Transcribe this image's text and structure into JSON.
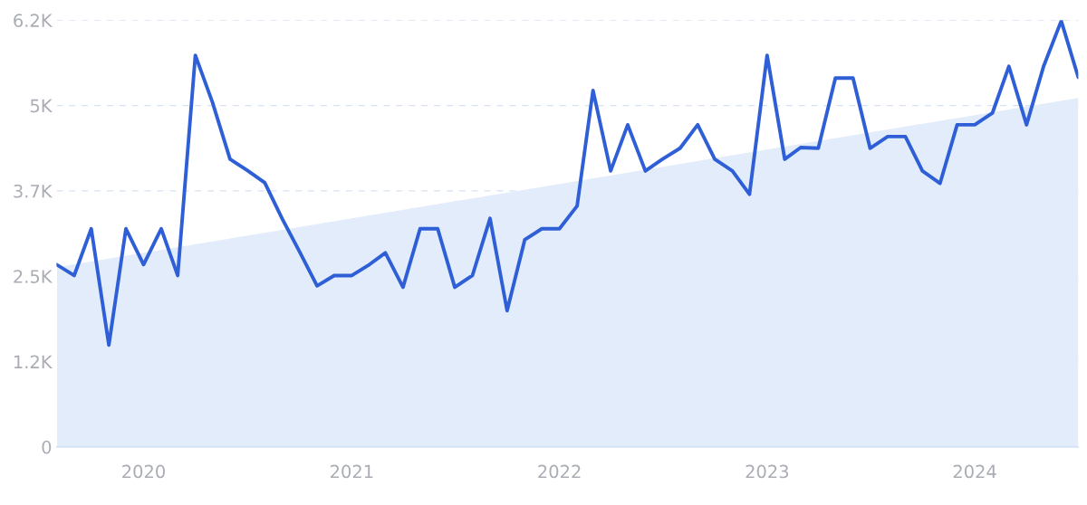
{
  "chart_data": {
    "type": "line",
    "xlim": [
      "2019-08",
      "2024-07"
    ],
    "xticks": [
      {
        "value": "2020-01",
        "label": "2020"
      },
      {
        "value": "2021-01",
        "label": "2021"
      },
      {
        "value": "2022-01",
        "label": "2022"
      },
      {
        "value": "2023-01",
        "label": "2023"
      },
      {
        "value": "2024-01",
        "label": "2024"
      }
    ],
    "ylim": [
      0,
      6200
    ],
    "yticks": [
      0,
      {
        "value": 1240,
        "label": "1.2K"
      },
      {
        "value": 2480,
        "label": "2.5K"
      },
      {
        "value": 3720,
        "label": "3.7K"
      },
      {
        "value": 4960,
        "label": "5K"
      },
      {
        "value": 6200,
        "label": "6.2K"
      }
    ],
    "grid": "y",
    "marker": "none",
    "line_style": "solid",
    "series": [
      {
        "type": "area",
        "color": "#e2ecfb",
        "x": [
          "2019-08",
          "2024-07"
        ],
        "values": [
          2610,
          5070
        ]
      },
      {
        "color": "#2f5fd6",
        "x": [
          "2019-08",
          "2019-09",
          "2019-10",
          "2019-11",
          "2019-12",
          "2020-01",
          "2020-02",
          "2020-03",
          "2020-04",
          "2020-05",
          "2020-06",
          "2020-07",
          "2020-08",
          "2020-09",
          "2020-10",
          "2020-11",
          "2020-12",
          "2021-01",
          "2021-02",
          "2021-03",
          "2021-04",
          "2021-05",
          "2021-06",
          "2021-07",
          "2021-08",
          "2021-09",
          "2021-10",
          "2021-11",
          "2021-12",
          "2022-01",
          "2022-02",
          "2022-03",
          "2022-04",
          "2022-05",
          "2022-06",
          "2022-07",
          "2022-08",
          "2022-09",
          "2022-10",
          "2022-11",
          "2022-12",
          "2023-01",
          "2023-02",
          "2023-03",
          "2023-04",
          "2023-05",
          "2023-06",
          "2023-07",
          "2023-08",
          "2023-09",
          "2023-10",
          "2023-11",
          "2023-12",
          "2024-01",
          "2024-02",
          "2024-03",
          "2024-04",
          "2024-05",
          "2024-06",
          "2024-07"
        ],
        "values": [
          2650,
          2490,
          3170,
          1480,
          3170,
          2650,
          3170,
          2490,
          5690,
          5010,
          4180,
          4020,
          3840,
          3310,
          2840,
          2340,
          2490,
          2490,
          2650,
          2820,
          2320,
          3170,
          3170,
          2320,
          2490,
          3320,
          1980,
          3010,
          3170,
          3170,
          3500,
          5180,
          4010,
          4680,
          4010,
          4180,
          4340,
          4680,
          4180,
          4010,
          3670,
          5690,
          4180,
          4350,
          4340,
          5360,
          5360,
          4340,
          4510,
          4510,
          4010,
          3830,
          4680,
          4680,
          4850,
          5530,
          4680,
          5530,
          6190,
          5370
        ]
      }
    ]
  }
}
